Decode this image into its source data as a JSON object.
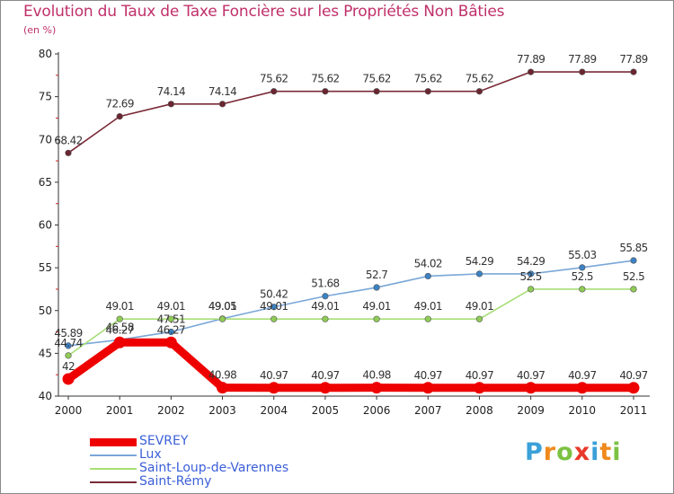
{
  "chart_data": {
    "type": "line",
    "title": "Evolution du Taux de Taxe Foncière sur les Propriétés Non Bâties",
    "ylabel": "(en %)",
    "xlabel": "",
    "categories": [
      "2000",
      "2001",
      "2002",
      "2003",
      "2004",
      "2005",
      "2006",
      "2007",
      "2008",
      "2009",
      "2010",
      "2011"
    ],
    "ylim": [
      40,
      80
    ],
    "yticks": [
      40,
      45,
      50,
      55,
      60,
      65,
      70,
      75,
      80
    ],
    "grid": false,
    "legend_position": "bottom-left",
    "series": [
      {
        "name": "SEVREY",
        "color": "#ee0000",
        "values": [
          42,
          46.27,
          46.27,
          40.98,
          40.97,
          40.97,
          40.98,
          40.97,
          40.97,
          40.97,
          40.97,
          40.97
        ],
        "labels": [
          "42",
          "46.27",
          "46.27",
          "40.98",
          "40.97",
          "40.97",
          "40.98",
          "40.97",
          "40.97",
          "40.97",
          "40.97",
          "40.97"
        ]
      },
      {
        "name": "Lux",
        "color": "#7aa7d8",
        "marker": "#3b82c4",
        "values": [
          45.89,
          46.58,
          47.51,
          49.05,
          50.42,
          51.68,
          52.7,
          54.02,
          54.29,
          54.29,
          55.03,
          55.85
        ],
        "labels": [
          "45.89",
          "46.58",
          "47.51",
          "49.05",
          "50.42",
          "51.68",
          "52.7",
          "54.02",
          "54.29",
          "54.29",
          "55.03",
          "55.85"
        ]
      },
      {
        "name": "Saint-Loup-de-Varennes",
        "color": "#a8de78",
        "marker": "#8fcc55",
        "values": [
          44.74,
          49.01,
          49.01,
          49.01,
          49.01,
          49.01,
          49.01,
          49.01,
          49.01,
          52.5,
          52.5,
          52.5
        ],
        "labels": [
          "44.74",
          "49.01",
          "49.01",
          "49.01",
          "49.01",
          "49.01",
          "49.01",
          "49.01",
          "49.01",
          "52.5",
          "52.5",
          "52.5"
        ]
      },
      {
        "name": "Saint-Rémy",
        "color": "#7a2a36",
        "marker": "#6b2530",
        "values": [
          68.42,
          72.69,
          74.14,
          74.14,
          75.62,
          75.62,
          75.62,
          75.62,
          75.62,
          77.89,
          77.89,
          77.89
        ],
        "labels": [
          "68.42",
          "72.69",
          "74.14",
          "74.14",
          "75.62",
          "75.62",
          "75.62",
          "75.62",
          "75.62",
          "77.89",
          "77.89",
          "77.89"
        ]
      }
    ]
  },
  "logo": {
    "text": "Proxiti",
    "letters": [
      "P",
      "r",
      "o",
      "x",
      "i",
      "t",
      "i"
    ],
    "colors": [
      "#3aa0d8",
      "#f08a1c",
      "#7cc242",
      "#e8392a",
      "#3aa0d8",
      "#f08a1c",
      "#7cc242"
    ]
  }
}
